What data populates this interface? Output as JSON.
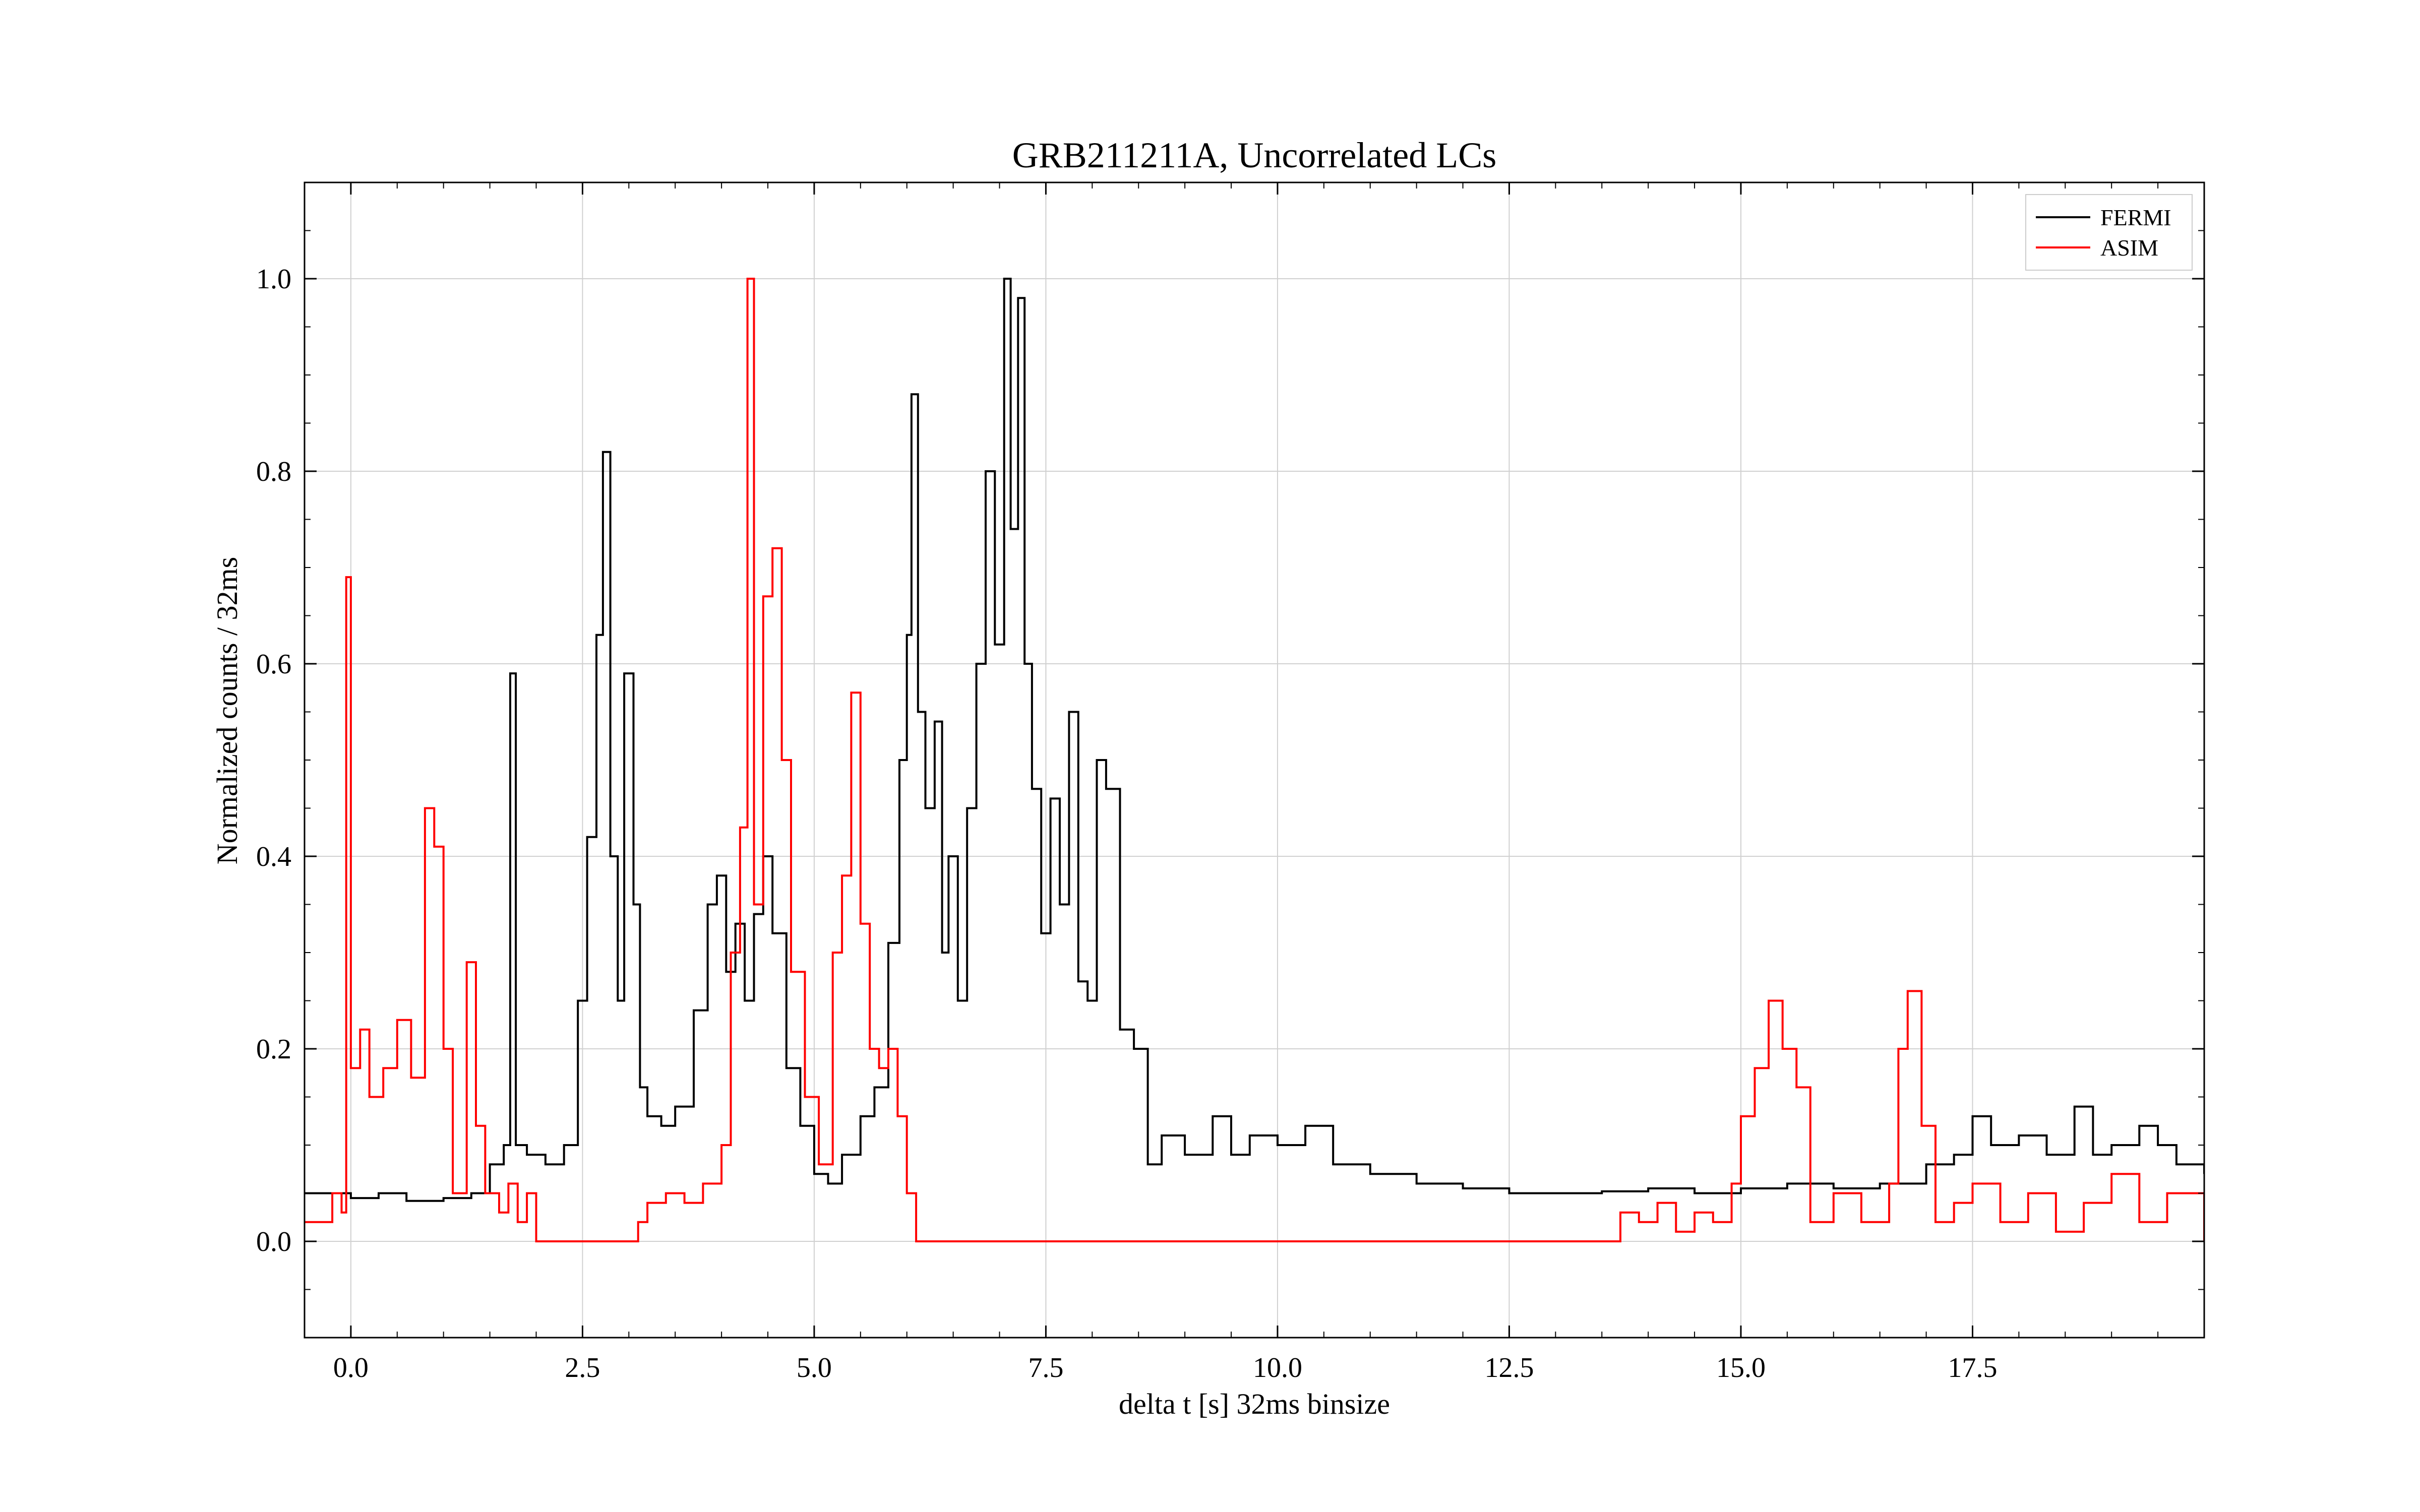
{
  "chart_data": {
    "type": "line",
    "title": "GRB211211A, Uncorrelated LCs",
    "xlabel": "delta t [s] 32ms binsize",
    "ylabel": "Normalized counts / 32ms",
    "xlim": [
      -0.5,
      20.0
    ],
    "ylim": [
      -0.1,
      1.1
    ],
    "xticks": [
      0.0,
      2.5,
      5.0,
      7.5,
      10.0,
      12.5,
      15.0,
      17.5
    ],
    "xtick_labels": [
      "0.0",
      "2.5",
      "5.0",
      "7.5",
      "10.0",
      "12.5",
      "15.0",
      "17.5"
    ],
    "yticks": [
      0.0,
      0.2,
      0.4,
      0.6,
      0.8,
      1.0
    ],
    "ytick_labels": [
      "0.0",
      "0.2",
      "0.4",
      "0.6",
      "0.8",
      "1.0"
    ],
    "grid": true,
    "legend_position": "top-right",
    "line_style": "step",
    "series": [
      {
        "name": "FERMI",
        "color": "#000000",
        "x": [
          -0.5,
          0.0,
          0.3,
          0.6,
          1.0,
          1.3,
          1.5,
          1.65,
          1.72,
          1.78,
          1.9,
          2.1,
          2.3,
          2.45,
          2.55,
          2.65,
          2.72,
          2.8,
          2.88,
          2.95,
          3.05,
          3.12,
          3.2,
          3.35,
          3.5,
          3.7,
          3.85,
          3.95,
          4.05,
          4.15,
          4.25,
          4.35,
          4.45,
          4.55,
          4.7,
          4.85,
          5.0,
          5.15,
          5.3,
          5.5,
          5.65,
          5.8,
          5.92,
          6.0,
          6.05,
          6.12,
          6.2,
          6.3,
          6.38,
          6.45,
          6.55,
          6.65,
          6.75,
          6.85,
          6.95,
          7.05,
          7.12,
          7.2,
          7.27,
          7.35,
          7.45,
          7.55,
          7.65,
          7.75,
          7.85,
          7.95,
          8.05,
          8.15,
          8.3,
          8.45,
          8.6,
          8.75,
          9.0,
          9.3,
          9.5,
          9.7,
          10.0,
          10.3,
          10.6,
          11.0,
          11.5,
          12.0,
          12.5,
          13.0,
          13.5,
          14.0,
          14.5,
          15.0,
          15.5,
          16.0,
          16.5,
          17.0,
          17.3,
          17.5,
          17.7,
          18.0,
          18.3,
          18.6,
          18.8,
          19.0,
          19.3,
          19.5,
          19.7,
          20.0
        ],
        "y": [
          0.05,
          0.045,
          0.05,
          0.042,
          0.045,
          0.05,
          0.08,
          0.1,
          0.59,
          0.1,
          0.09,
          0.08,
          0.1,
          0.25,
          0.42,
          0.63,
          0.82,
          0.4,
          0.25,
          0.59,
          0.35,
          0.16,
          0.13,
          0.12,
          0.14,
          0.24,
          0.35,
          0.38,
          0.28,
          0.33,
          0.25,
          0.34,
          0.4,
          0.32,
          0.18,
          0.12,
          0.07,
          0.06,
          0.09,
          0.13,
          0.16,
          0.31,
          0.5,
          0.63,
          0.88,
          0.55,
          0.45,
          0.54,
          0.3,
          0.4,
          0.25,
          0.45,
          0.6,
          0.8,
          0.62,
          1.0,
          0.74,
          0.98,
          0.6,
          0.47,
          0.32,
          0.46,
          0.35,
          0.55,
          0.27,
          0.25,
          0.5,
          0.47,
          0.22,
          0.2,
          0.08,
          0.11,
          0.09,
          0.13,
          0.09,
          0.11,
          0.1,
          0.12,
          0.08,
          0.07,
          0.06,
          0.055,
          0.05,
          0.05,
          0.052,
          0.055,
          0.05,
          0.055,
          0.06,
          0.055,
          0.06,
          0.08,
          0.09,
          0.13,
          0.1,
          0.11,
          0.09,
          0.14,
          0.09,
          0.1,
          0.12,
          0.1,
          0.08,
          0.07
        ]
      },
      {
        "name": "ASIM",
        "color": "#ff0000",
        "x": [
          -0.5,
          -0.2,
          -0.1,
          -0.05,
          0.0,
          0.1,
          0.2,
          0.35,
          0.5,
          0.65,
          0.8,
          0.9,
          1.0,
          1.1,
          1.25,
          1.35,
          1.45,
          1.6,
          1.7,
          1.8,
          1.9,
          2.0,
          3.0,
          3.1,
          3.2,
          3.4,
          3.6,
          3.8,
          4.0,
          4.1,
          4.2,
          4.28,
          4.35,
          4.45,
          4.55,
          4.65,
          4.75,
          4.9,
          5.05,
          5.2,
          5.3,
          5.4,
          5.5,
          5.6,
          5.7,
          5.8,
          5.9,
          6.0,
          6.1,
          13.6,
          13.7,
          13.9,
          14.1,
          14.3,
          14.5,
          14.7,
          14.9,
          15.0,
          15.15,
          15.3,
          15.45,
          15.6,
          15.75,
          16.0,
          16.3,
          16.6,
          16.7,
          16.8,
          16.95,
          17.1,
          17.3,
          17.5,
          17.8,
          18.1,
          18.4,
          18.7,
          19.0,
          19.3,
          19.6,
          20.0
        ],
        "y": [
          0.02,
          0.05,
          0.03,
          0.69,
          0.18,
          0.22,
          0.15,
          0.18,
          0.23,
          0.17,
          0.45,
          0.41,
          0.2,
          0.05,
          0.29,
          0.12,
          0.05,
          0.03,
          0.06,
          0.02,
          0.05,
          0.0,
          0.0,
          0.02,
          0.04,
          0.05,
          0.04,
          0.06,
          0.1,
          0.3,
          0.43,
          1.0,
          0.35,
          0.67,
          0.72,
          0.5,
          0.28,
          0.15,
          0.08,
          0.3,
          0.38,
          0.57,
          0.33,
          0.2,
          0.18,
          0.2,
          0.13,
          0.05,
          0.0,
          0.0,
          0.03,
          0.02,
          0.04,
          0.01,
          0.03,
          0.02,
          0.06,
          0.13,
          0.18,
          0.25,
          0.2,
          0.16,
          0.02,
          0.05,
          0.02,
          0.06,
          0.2,
          0.26,
          0.12,
          0.02,
          0.04,
          0.06,
          0.02,
          0.05,
          0.01,
          0.04,
          0.07,
          0.02,
          0.05,
          0.0
        ]
      }
    ]
  }
}
